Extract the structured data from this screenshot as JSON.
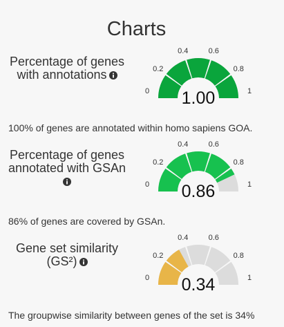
{
  "title": "Charts",
  "gauges": [
    {
      "label_lines": [
        "Percentage of genes",
        "with annotations"
      ],
      "value": 1.0,
      "value_text": "1.00",
      "color": "#0aa53c",
      "description": "100% of genes are annotated within homo sapiens GOA."
    },
    {
      "label_lines": [
        "Percentage of genes",
        "annotated with GSAn"
      ],
      "value": 0.86,
      "value_text": "0.86",
      "color": "#17c14f",
      "description": "86% of genes are covered by GSAn."
    },
    {
      "label_lines": [
        "Gene set similarity",
        "(GS²)"
      ],
      "value": 0.34,
      "value_text": "0.34",
      "color": "#e8b548",
      "description": "The groupwise similarity between genes of the set is 34%"
    }
  ],
  "ticks": [
    "0",
    "0.2",
    "0.4",
    "0.6",
    "0.8",
    "1"
  ],
  "empty_color": "#dcdcdc",
  "icon": "info-circle-icon"
}
